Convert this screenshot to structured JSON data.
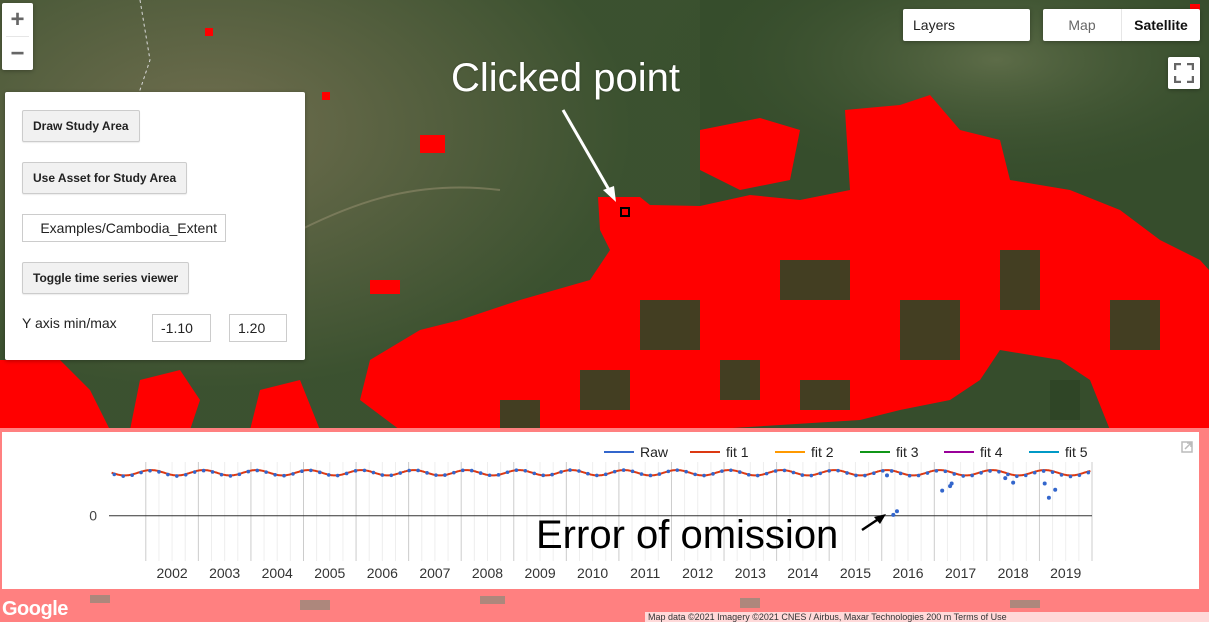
{
  "map": {
    "layers_label": "Layers",
    "maptype": {
      "map_label": "Map",
      "satellite_label": "Satellite"
    },
    "zoom_in": "+",
    "zoom_out": "−",
    "google_logo": "Google",
    "attribution": "Map data ©2021 Imagery ©2021 CNES / Airbus, Maxar Technologies   200 m     Terms of Use",
    "colors": {
      "highlight": "#ff0000",
      "forest": "#2e4a25"
    }
  },
  "panel": {
    "draw_button": "Draw Study Area",
    "asset_button": "Use Asset for Study Area",
    "asset_path": "Examples/Cambodia_Extent",
    "toggle_button": "Toggle time series viewer",
    "yaxis_label": "Y axis min/max",
    "ymin": "-1.10",
    "ymax": "1.20"
  },
  "annotations": {
    "clicked_point": "Clicked point",
    "omission": "Error of omission"
  },
  "chart_data": {
    "type": "line",
    "legend_position": "top-right",
    "series": [
      {
        "name": "Raw",
        "color": "#3366cc"
      },
      {
        "name": "fit 1",
        "color": "#dc3912"
      },
      {
        "name": "fit 2",
        "color": "#ff9900"
      },
      {
        "name": "fit 3",
        "color": "#109618"
      },
      {
        "name": "fit 4",
        "color": "#990099"
      },
      {
        "name": "fit 5",
        "color": "#0099c6"
      }
    ],
    "x_ticks": [
      "2002",
      "2003",
      "2004",
      "2005",
      "2006",
      "2007",
      "2008",
      "2009",
      "2010",
      "2011",
      "2012",
      "2013",
      "2014",
      "2015",
      "2016",
      "2017",
      "2018",
      "2019"
    ],
    "xlim": [
      2001.3,
      2020.0
    ],
    "ylim": [
      -0.45,
      0.6
    ],
    "y_ticks": [
      "0"
    ],
    "fit_level": 0.48,
    "fit_amplitude": 0.03,
    "raw_outliers": [
      {
        "x": 2016.29,
        "y": 0.05
      },
      {
        "x": 2016.22,
        "y": 0.01
      },
      {
        "x": 2016.1,
        "y": 0.45
      },
      {
        "x": 2017.15,
        "y": 0.28
      },
      {
        "x": 2017.3,
        "y": 0.33
      },
      {
        "x": 2017.33,
        "y": 0.36
      },
      {
        "x": 2019.1,
        "y": 0.36
      },
      {
        "x": 2019.18,
        "y": 0.2
      },
      {
        "x": 2019.3,
        "y": 0.29
      },
      {
        "x": 2018.5,
        "y": 0.37
      },
      {
        "x": 2018.35,
        "y": 0.42
      }
    ]
  }
}
